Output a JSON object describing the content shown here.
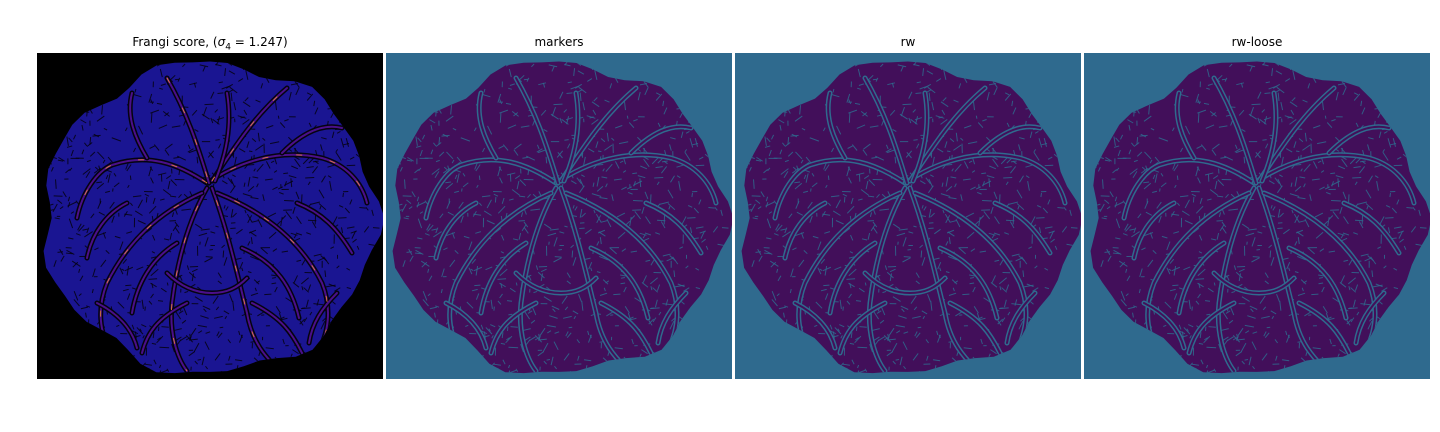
{
  "figure": {
    "panels": [
      {
        "id": "frangi",
        "title_prefix": "Frangi score, (",
        "title_symbol": "σ",
        "title_subscript": "4",
        "title_suffix": " = 1.247)",
        "background": "#000000",
        "disc_color": "#1a1592",
        "vessel_color": "#4b0f8a",
        "highlight_color": "#f08a2a"
      },
      {
        "id": "markers",
        "title": "markers",
        "background": "#2f6a8e",
        "disc_color": "#420f5a",
        "vessel_color": "#2f6a8e"
      },
      {
        "id": "rw",
        "title": "rw",
        "background": "#2f6a8e",
        "disc_color": "#420f5a",
        "vessel_color": "#2f6a8e"
      },
      {
        "id": "rw-loose",
        "title": "rw-loose",
        "background": "#2f6a8e",
        "disc_color": "#420f5a",
        "vessel_color": "#2f6a8e"
      }
    ]
  }
}
